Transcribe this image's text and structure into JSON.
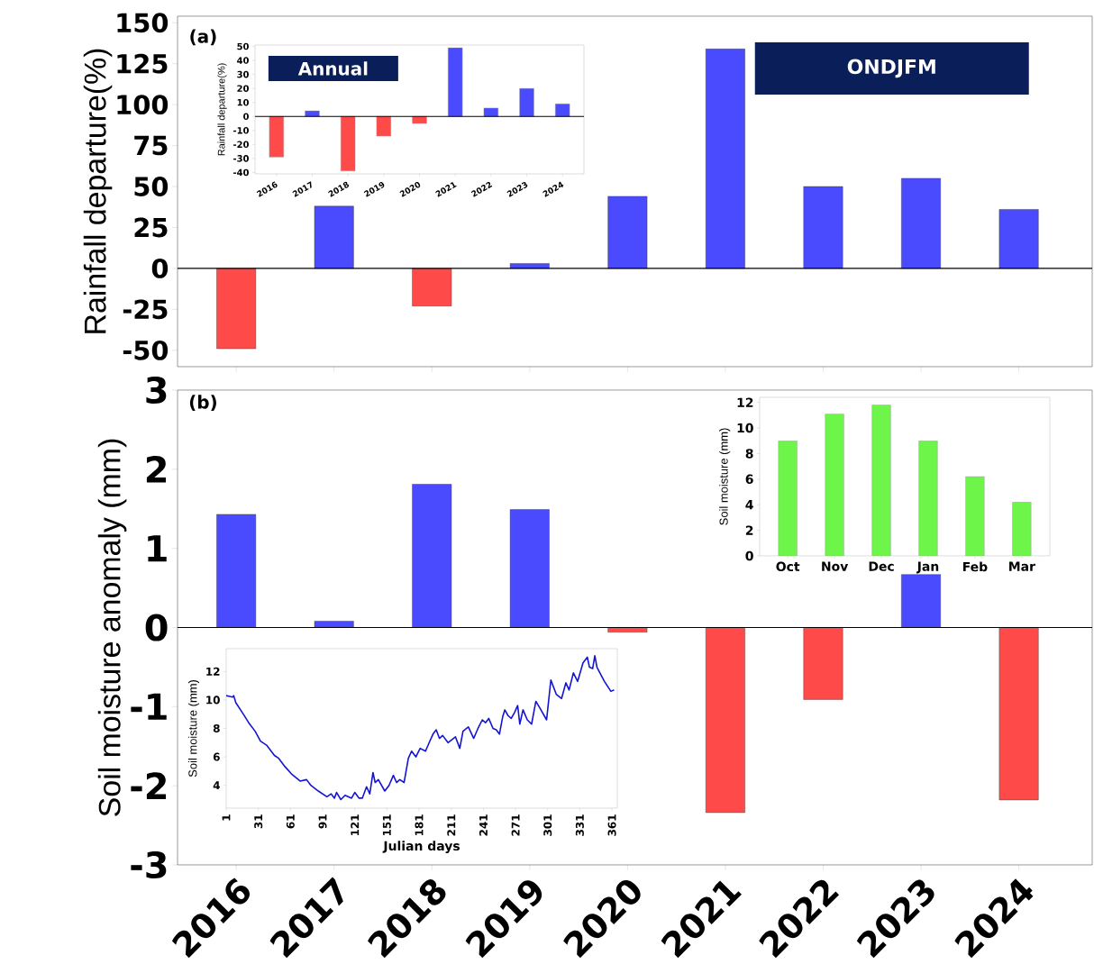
{
  "chart_data": [
    {
      "type": "bar",
      "ylabel": "Rainfall departure(%)",
      "categories": [
        "2016",
        "2017",
        "2018",
        "2019",
        "2020",
        "2021",
        "2022",
        "2023",
        "2024"
      ],
      "values": [
        -49,
        38,
        -23,
        3,
        44,
        134,
        50,
        55,
        36
      ],
      "colors": [
        "#ff4a4a",
        "#4a4aff",
        "#ff4a4a",
        "#4a4aff",
        "#4a4aff",
        "#4a4aff",
        "#4a4aff",
        "#4a4aff",
        "#4a4aff"
      ],
      "ylim": [
        -60,
        154
      ],
      "yticks": [
        -50,
        -25,
        0,
        25,
        50,
        75,
        100,
        125,
        150
      ],
      "tick_labels": "y",
      "ref_lines": [
        {
          "axis": "y",
          "value": 0
        }
      ],
      "annotations": [
        "(a)",
        "ONDJFM"
      ]
    },
    {
      "type": "bar",
      "ylabel": "Rainfall departure(%)",
      "categories": [
        "2016",
        "2017",
        "2018",
        "2019",
        "2020",
        "2021",
        "2022",
        "2023",
        "2024"
      ],
      "values": [
        -29,
        4,
        -39,
        -14,
        -5,
        49,
        6,
        20,
        9
      ],
      "colors": [
        "#ff4a4a",
        "#4a4aff",
        "#ff4a4a",
        "#ff4a4a",
        "#ff4a4a",
        "#4a4aff",
        "#4a4aff",
        "#4a4aff",
        "#4a4aff"
      ],
      "ylim": [
        -41,
        51
      ],
      "yticks": [
        -40,
        -30,
        -20,
        -10,
        0,
        10,
        20,
        30,
        40,
        50
      ],
      "ref_lines": [
        {
          "axis": "y",
          "value": 0
        }
      ],
      "annotations": [
        "Annual"
      ]
    },
    {
      "type": "bar",
      "ylabel": "Soil moisture anomaly (mm)",
      "categories": [
        "2016",
        "2017",
        "2018",
        "2019",
        "2020",
        "2021",
        "2022",
        "2023",
        "2024"
      ],
      "values": [
        1.43,
        0.08,
        1.81,
        1.49,
        -0.06,
        -2.34,
        -0.91,
        0.67,
        -2.18
      ],
      "colors": [
        "#4a4aff",
        "#4a4aff",
        "#4a4aff",
        "#4a4aff",
        "#ff4a4a",
        "#ff4a4a",
        "#ff4a4a",
        "#4a4aff",
        "#ff4a4a"
      ],
      "ylim": [
        -3,
        3
      ],
      "yticks": [
        -3,
        -2,
        -1,
        0,
        1,
        2,
        3
      ],
      "ref_lines": [
        {
          "axis": "y",
          "value": 0
        }
      ],
      "annotations": [
        "(b)"
      ]
    },
    {
      "type": "bar",
      "ylabel": "Soil moisture (mm)",
      "categories": [
        "Oct",
        "Nov",
        "Dec",
        "Jan",
        "Feb",
        "Mar"
      ],
      "values": [
        9.0,
        11.1,
        11.8,
        9.0,
        6.2,
        4.2
      ],
      "color": "#6ef54a",
      "ylim": [
        0,
        12.4
      ],
      "yticks": [
        0,
        2,
        4,
        6,
        8,
        10,
        12
      ]
    },
    {
      "type": "line",
      "xlabel": "Julian days",
      "ylabel": "Soil moisture (mm)",
      "x": [
        1,
        7,
        8,
        10,
        17,
        22,
        28,
        33,
        39,
        46,
        50,
        56,
        62,
        70,
        76,
        80,
        87,
        95,
        99,
        102,
        104,
        108,
        112,
        118,
        121,
        125,
        128,
        132,
        135,
        138,
        140,
        143,
        149,
        153,
        157,
        160,
        163,
        167,
        171,
        174,
        178,
        182,
        187,
        191,
        194,
        197,
        200,
        203,
        208,
        215,
        219,
        222,
        227,
        232,
        236,
        240,
        243,
        246,
        250,
        253,
        256,
        259,
        261,
        264,
        267,
        270,
        273,
        275,
        278,
        282,
        286,
        290,
        294,
        300,
        304,
        309,
        314,
        318,
        321,
        325,
        329,
        334,
        338,
        340,
        343,
        345,
        347,
        354,
        360,
        363
      ],
      "values": [
        10.3,
        10.2,
        10.3,
        9.8,
        9.0,
        8.4,
        7.8,
        7.1,
        6.8,
        6.1,
        5.9,
        5.3,
        4.8,
        4.3,
        4.4,
        4.0,
        3.6,
        3.2,
        3.4,
        3.1,
        3.5,
        3.0,
        3.3,
        3.1,
        3.5,
        3.1,
        3.1,
        3.9,
        3.4,
        4.9,
        4.2,
        4.4,
        3.6,
        4.0,
        4.7,
        4.2,
        4.4,
        4.2,
        5.9,
        6.4,
        6.0,
        6.6,
        6.4,
        7.1,
        7.6,
        7.9,
        7.3,
        7.5,
        7.0,
        7.4,
        6.6,
        7.8,
        8.1,
        7.3,
        8.0,
        8.6,
        8.4,
        8.7,
        8.0,
        7.9,
        7.6,
        8.8,
        9.3,
        8.9,
        8.7,
        9.1,
        9.6,
        8.3,
        9.3,
        8.6,
        8.3,
        9.9,
        9.4,
        8.6,
        11.4,
        10.4,
        10.1,
        11.2,
        10.7,
        11.9,
        11.3,
        12.6,
        13.0,
        12.3,
        12.2,
        13.1,
        12.3,
        11.3,
        10.6,
        10.7
      ],
      "color": "#1414d2",
      "xlim": [
        1,
        366
      ],
      "ylim": [
        2.4,
        13.6
      ],
      "xticks": [
        1,
        31,
        61,
        91,
        121,
        151,
        181,
        211,
        241,
        271,
        301,
        331,
        361
      ],
      "yticks": [
        4,
        6,
        8,
        10,
        12
      ]
    }
  ]
}
